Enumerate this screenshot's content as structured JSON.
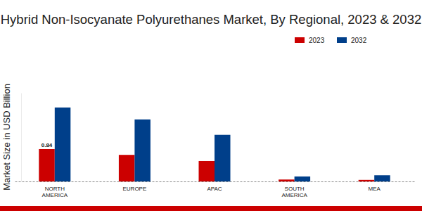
{
  "chart_data": {
    "type": "bar",
    "title": "Hybrid Non-Isocyanate Polyurethanes Market, By Regional, 2023 & 2032",
    "y_label": "Market Size in USD Billion",
    "categories": [
      "NORTH AMERICA",
      "EUROPE",
      "APAC",
      "SOUTH AMERICA",
      "MEA"
    ],
    "series": [
      {
        "name": "2023",
        "color": "#cc0000",
        "values": [
          0.84,
          0.69,
          0.53,
          0.05,
          0.04
        ],
        "data_labels": true,
        "value_labels": [
          "0.84",
          null,
          null,
          null,
          null
        ]
      },
      {
        "name": "2032",
        "color": "#003f8a",
        "values": [
          1.92,
          1.61,
          1.21,
          0.13,
          0.16
        ]
      }
    ],
    "ylim": [
      0,
      2.3
    ],
    "tick_labels": "x",
    "legend": "top-right",
    "grid": false
  }
}
